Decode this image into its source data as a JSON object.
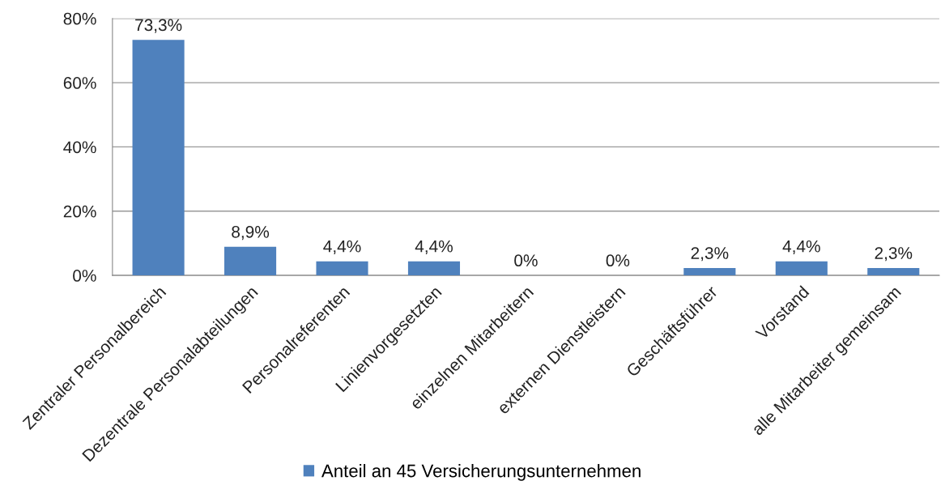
{
  "chart_data": {
    "type": "bar",
    "categories": [
      "Zentraler Personalbereich",
      "Dezentrale Personalabteilungen",
      "Personalreferenten",
      "Linienvorgesetzten",
      "einzelnen Mitarbeitern",
      "externen Dienstleistern",
      "Geschäftsführer",
      "Vorstand",
      "alle Mitarbeiter gemeinsam"
    ],
    "series": [
      {
        "name": "Anteil an 45 Versicherungsunternehmen",
        "color": "#4f81bd",
        "values": [
          73.3,
          8.9,
          4.4,
          4.4,
          0,
          0,
          2.3,
          4.4,
          2.3
        ],
        "value_labels": [
          "73,3%",
          "8,9%",
          "4,4%",
          "4,4%",
          "0%",
          "0%",
          "2,3%",
          "4,4%",
          "2,3%"
        ]
      }
    ],
    "ylim": [
      0,
      80
    ],
    "yticks": [
      {
        "value": 0,
        "label": "0%"
      },
      {
        "value": 20,
        "label": "20%"
      },
      {
        "value": 40,
        "label": "40%"
      },
      {
        "value": 60,
        "label": "60%"
      },
      {
        "value": 80,
        "label": "80%"
      }
    ],
    "grid": "y",
    "legend": "bottom"
  }
}
